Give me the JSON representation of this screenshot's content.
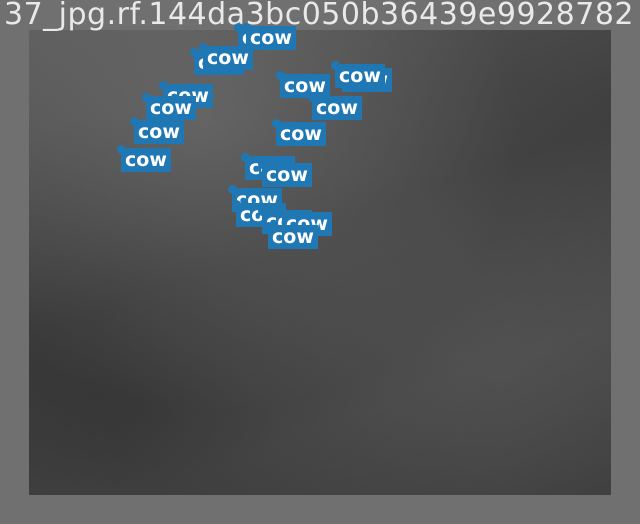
{
  "image": {
    "caption": "37_jpg.rf.144da3bc050b36439e9928782",
    "palette": {
      "background": "#707070",
      "label": "#1f77b4",
      "label_text": "#ffffff"
    }
  },
  "detections": [
    {
      "label": "cow"
    },
    {
      "label": "cow"
    },
    {
      "label": "cow"
    },
    {
      "label": "cow"
    },
    {
      "label": "cow"
    },
    {
      "label": "cow"
    },
    {
      "label": "cow"
    },
    {
      "label": "cow"
    },
    {
      "label": "cow"
    },
    {
      "label": "cow"
    },
    {
      "label": "cow"
    },
    {
      "label": "cow"
    },
    {
      "label": "cow"
    },
    {
      "label": "cow"
    },
    {
      "label": "cow"
    },
    {
      "label": "cow"
    },
    {
      "label": "cow"
    },
    {
      "label": "cow"
    },
    {
      "label": "cow"
    },
    {
      "label": "cow"
    }
  ]
}
